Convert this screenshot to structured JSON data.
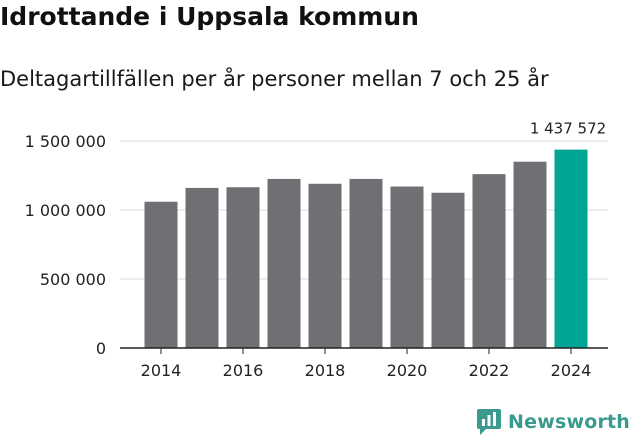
{
  "chart_data": {
    "type": "bar",
    "title": "Idrottande i Uppsala kommun",
    "subtitle": "Deltagartillfällen per år personer mellan 7 och 25 år",
    "categories": [
      "2014",
      "2015",
      "2016",
      "2017",
      "2018",
      "2019",
      "2020",
      "2021",
      "2022",
      "2023",
      "2024"
    ],
    "values": [
      1060000,
      1160000,
      1165000,
      1225000,
      1190000,
      1225000,
      1170000,
      1125000,
      1260000,
      1350000,
      1437572
    ],
    "highlight_index": 10,
    "highlight_label": "1 437 572",
    "ylim": [
      0,
      1500000
    ],
    "yticks": [
      0,
      500000,
      1000000,
      1500000
    ],
    "ytick_labels": [
      "0",
      "500 000",
      "1 000 000",
      "1 500 000"
    ],
    "xtick_labels": [
      "2014",
      "2016",
      "2018",
      "2020",
      "2022",
      "2024"
    ],
    "xlabel": "",
    "ylabel": "",
    "grid": true,
    "colors": {
      "bar": "#706f74",
      "highlight": "#00a693",
      "grid": "#dddddd",
      "axis": "#222222"
    }
  },
  "brand": {
    "name": "Newsworthy",
    "icon": "bar-chart-speech-icon",
    "color": "#3a9a8e"
  }
}
